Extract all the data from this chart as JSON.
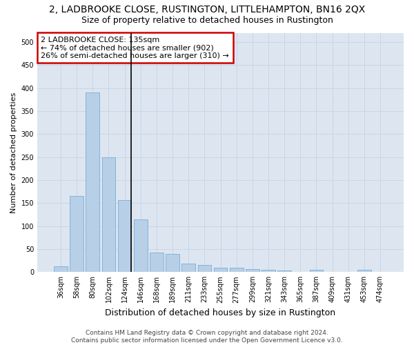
{
  "title": "2, LADBROOKE CLOSE, RUSTINGTON, LITTLEHAMPTON, BN16 2QX",
  "subtitle": "Size of property relative to detached houses in Rustington",
  "xlabel": "Distribution of detached houses by size in Rustington",
  "ylabel": "Number of detached properties",
  "categories": [
    "36sqm",
    "58sqm",
    "80sqm",
    "102sqm",
    "124sqm",
    "146sqm",
    "168sqm",
    "189sqm",
    "211sqm",
    "233sqm",
    "255sqm",
    "277sqm",
    "299sqm",
    "321sqm",
    "343sqm",
    "365sqm",
    "387sqm",
    "409sqm",
    "431sqm",
    "453sqm",
    "474sqm"
  ],
  "values": [
    12,
    165,
    390,
    250,
    157,
    115,
    43,
    40,
    18,
    15,
    10,
    10,
    6,
    5,
    3,
    0,
    5,
    0,
    0,
    5,
    0
  ],
  "bar_color": "#b8cfe8",
  "bar_edge_color": "#7aadd4",
  "grid_color": "#c8d4e8",
  "background_color": "#dde6f0",
  "annotation_text_line1": "2 LADBROOKE CLOSE: 135sqm",
  "annotation_text_line2": "← 74% of detached houses are smaller (902)",
  "annotation_text_line3": "26% of semi-detached houses are larger (310) →",
  "annotation_box_color": "#cc0000",
  "vline_x_index": 4,
  "footer1": "Contains HM Land Registry data © Crown copyright and database right 2024.",
  "footer2": "Contains public sector information licensed under the Open Government Licence v3.0.",
  "ylim": [
    0,
    520
  ],
  "yticks": [
    0,
    50,
    100,
    150,
    200,
    250,
    300,
    350,
    400,
    450,
    500
  ],
  "title_fontsize": 10,
  "subtitle_fontsize": 9,
  "ylabel_fontsize": 8,
  "xlabel_fontsize": 9,
  "tick_fontsize": 7,
  "annotation_fontsize": 8,
  "footer_fontsize": 6.5
}
